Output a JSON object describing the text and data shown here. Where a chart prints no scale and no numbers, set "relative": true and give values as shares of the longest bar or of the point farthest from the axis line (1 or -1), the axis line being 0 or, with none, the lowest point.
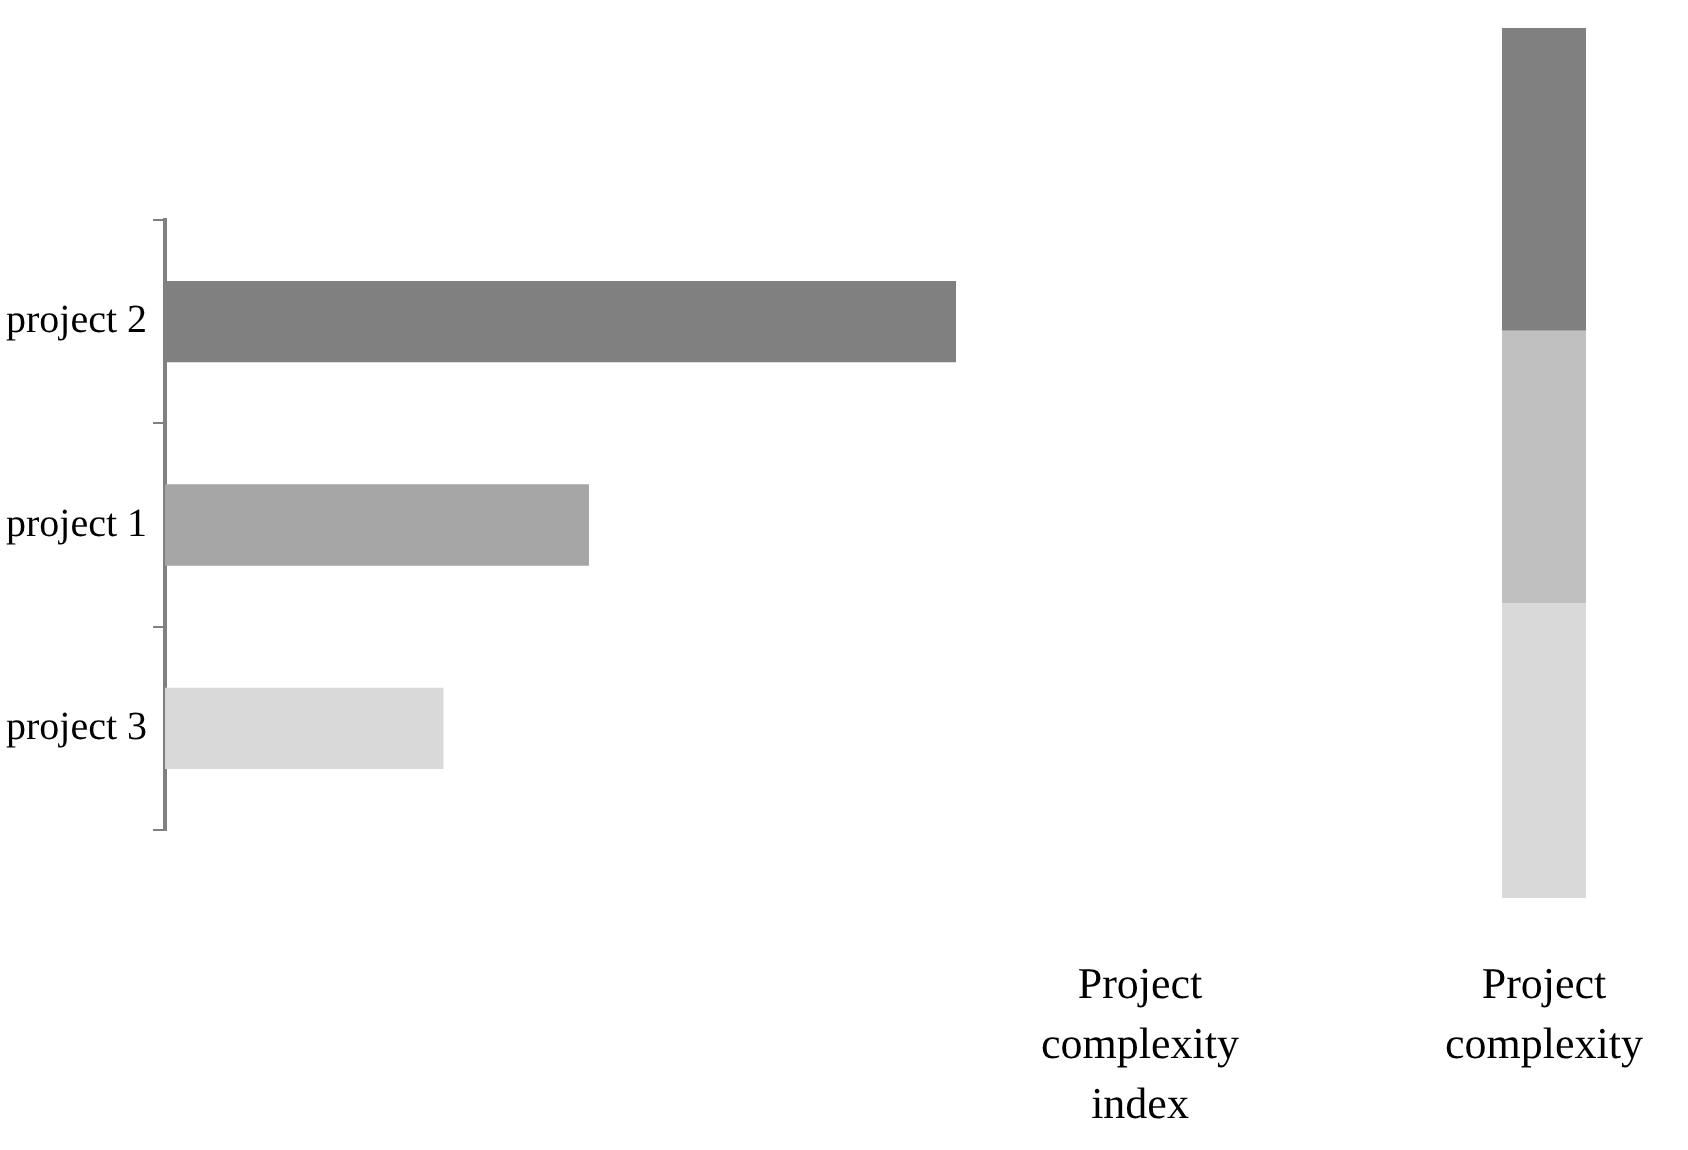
{
  "chart_data": [
    {
      "type": "bar",
      "orientation": "horizontal",
      "relative": true,
      "xlabel": "Project complexity index",
      "categories": [
        "project 2",
        "project 1",
        "project 3"
      ],
      "values": [
        1,
        0.536,
        0.352
      ],
      "colors": [
        "#808080",
        "#a6a6a6",
        "#d9d9d9"
      ],
      "grid": false,
      "legend": false
    },
    {
      "type": "bar",
      "stacked": true,
      "relative": true,
      "xlabel": "Project complexity",
      "categories": [
        null
      ],
      "series": [
        {
          "color": "#d9d9d9",
          "values": [
            0.339
          ]
        },
        {
          "color": "#c0c0c0",
          "values": [
            0.313
          ]
        },
        {
          "color": "#808080",
          "values": [
            0.348
          ]
        }
      ],
      "grid": false,
      "legend": false
    }
  ]
}
